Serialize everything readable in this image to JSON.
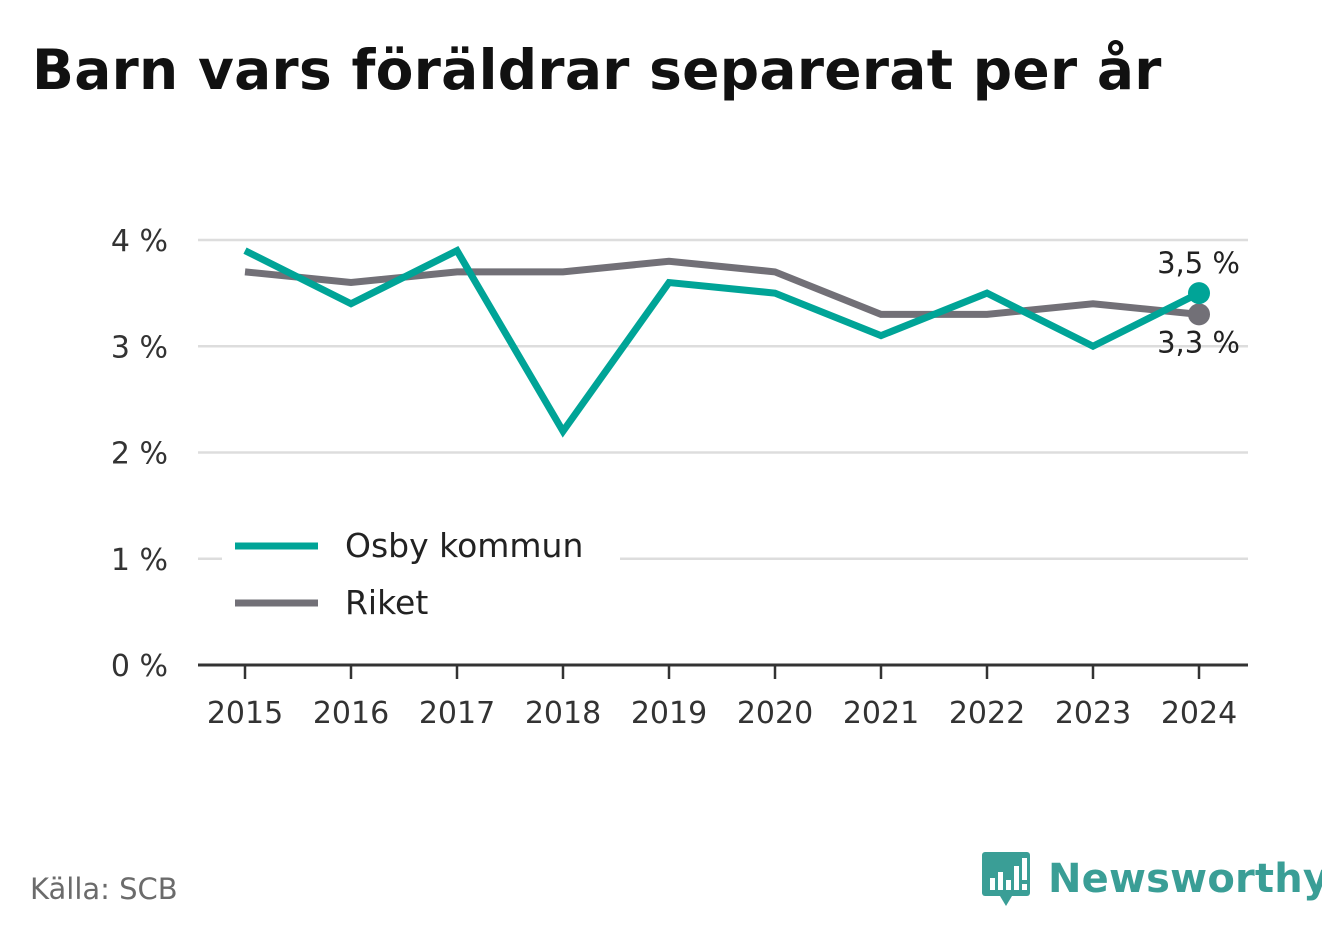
{
  "title": "Barn vars föräldrar separerat per år",
  "source": "Källa: SCB",
  "brand": {
    "name": "Newsworthy"
  },
  "colors": {
    "primary": "#00a497",
    "secondary": "#727077",
    "grid": "#dddddd",
    "axis": "#333333",
    "brand": "#3a9e96"
  },
  "chart_data": {
    "type": "line",
    "title": "Barn vars föräldrar separerat per år",
    "xlabel": "",
    "ylabel": "",
    "x": [
      "2015",
      "2016",
      "2017",
      "2018",
      "2019",
      "2020",
      "2021",
      "2022",
      "2023",
      "2024"
    ],
    "ylim": [
      0,
      4
    ],
    "yticks": [
      0,
      1,
      2,
      3,
      4
    ],
    "ytick_labels": [
      "0 %",
      "1 %",
      "2 %",
      "3 %",
      "4 %"
    ],
    "grid": true,
    "legend_position": "bottom-left",
    "series": [
      {
        "name": "Osby kommun",
        "color": "#00a497",
        "values": [
          3.9,
          3.4,
          3.9,
          2.2,
          3.6,
          3.5,
          3.1,
          3.5,
          3.0,
          3.5
        ],
        "end_label": "3,5 %"
      },
      {
        "name": "Riket",
        "color": "#727077",
        "values": [
          3.7,
          3.6,
          3.7,
          3.7,
          3.8,
          3.7,
          3.3,
          3.3,
          3.4,
          3.3
        ],
        "end_label": "3,3 %"
      }
    ]
  }
}
